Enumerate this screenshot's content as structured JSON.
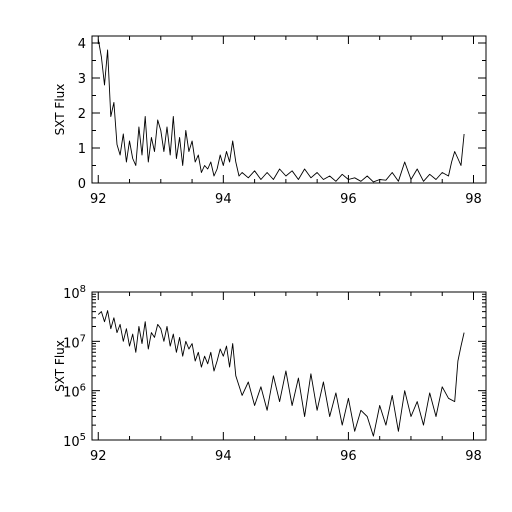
{
  "chart_data": [
    {
      "type": "line",
      "title": "",
      "xlabel": "",
      "ylabel": "SXT Flux",
      "xlim": [
        91.9,
        98.2
      ],
      "ylim": [
        0,
        4.2
      ],
      "yscale": "linear",
      "xticks": [
        92,
        94,
        96,
        98
      ],
      "xtick_labels": [
        "92",
        "94",
        "96",
        "98"
      ],
      "yticks": [
        0,
        1,
        2,
        3,
        4
      ],
      "ytick_labels": [
        "0",
        "1",
        "2",
        "3",
        "4"
      ],
      "grid": false,
      "line_color": "#000000",
      "series": [
        {
          "x": [
            92.0,
            92.05,
            92.1,
            92.15,
            92.2,
            92.25,
            92.3,
            92.35,
            92.4,
            92.45,
            92.5,
            92.55,
            92.6,
            92.65,
            92.7,
            92.75,
            92.8,
            92.85,
            92.9,
            92.95,
            93.0,
            93.05,
            93.1,
            93.15,
            93.2,
            93.25,
            93.3,
            93.35,
            93.4,
            93.45,
            93.5,
            93.55,
            93.6,
            93.65,
            93.7,
            93.75,
            93.8,
            93.85,
            93.9,
            93.95,
            94.0,
            94.05,
            94.1,
            94.15,
            94.2,
            94.25,
            94.3,
            94.4,
            94.5,
            94.6,
            94.7,
            94.8,
            94.9,
            95.0,
            95.1,
            95.2,
            95.3,
            95.4,
            95.5,
            95.6,
            95.7,
            95.8,
            95.9,
            96.0,
            96.1,
            96.2,
            96.3,
            96.4,
            96.5,
            96.6,
            96.7,
            96.8,
            96.9,
            97.0,
            97.1,
            97.2,
            97.3,
            97.4,
            97.5,
            97.6,
            97.65,
            97.7,
            97.75,
            97.8,
            97.85
          ],
          "y": [
            4.1,
            3.6,
            2.8,
            3.8,
            1.9,
            2.3,
            1.1,
            0.8,
            1.4,
            0.6,
            1.2,
            0.7,
            0.5,
            1.6,
            0.8,
            1.9,
            0.6,
            1.3,
            0.9,
            1.8,
            1.5,
            0.9,
            1.6,
            0.8,
            1.9,
            0.7,
            1.3,
            0.5,
            1.5,
            0.9,
            1.2,
            0.6,
            0.8,
            0.3,
            0.5,
            0.4,
            0.6,
            0.2,
            0.4,
            0.8,
            0.5,
            0.9,
            0.6,
            1.2,
            0.6,
            0.2,
            0.3,
            0.15,
            0.35,
            0.1,
            0.3,
            0.1,
            0.4,
            0.2,
            0.35,
            0.1,
            0.4,
            0.15,
            0.3,
            0.1,
            0.2,
            0.05,
            0.25,
            0.1,
            0.15,
            0.05,
            0.2,
            0.03,
            0.1,
            0.08,
            0.3,
            0.05,
            0.6,
            0.1,
            0.4,
            0.05,
            0.25,
            0.1,
            0.3,
            0.2,
            0.6,
            0.9,
            0.7,
            0.5,
            1.4
          ]
        }
      ]
    },
    {
      "type": "line",
      "title": "",
      "xlabel": "",
      "ylabel": "SXT Flux",
      "xlim": [
        91.9,
        98.2
      ],
      "ylim": [
        100000,
        100000000
      ],
      "yscale": "log",
      "xticks": [
        92,
        94,
        96,
        98
      ],
      "xtick_labels": [
        "92",
        "94",
        "96",
        "98"
      ],
      "yticks": [
        100000,
        1000000,
        10000000,
        100000000
      ],
      "ytick_base": "10",
      "ytick_exponents": [
        "5",
        "6",
        "7",
        "8"
      ],
      "grid": false,
      "line_color": "#000000",
      "series": [
        {
          "x": [
            92.0,
            92.05,
            92.1,
            92.15,
            92.2,
            92.25,
            92.3,
            92.35,
            92.4,
            92.45,
            92.5,
            92.55,
            92.6,
            92.65,
            92.7,
            92.75,
            92.8,
            92.85,
            92.9,
            92.95,
            93.0,
            93.05,
            93.1,
            93.15,
            93.2,
            93.25,
            93.3,
            93.35,
            93.4,
            93.45,
            93.5,
            93.55,
            93.6,
            93.65,
            93.7,
            93.75,
            93.8,
            93.85,
            93.9,
            93.95,
            94.0,
            94.05,
            94.1,
            94.15,
            94.2,
            94.3,
            94.4,
            94.5,
            94.6,
            94.7,
            94.8,
            94.9,
            95.0,
            95.1,
            95.2,
            95.3,
            95.4,
            95.5,
            95.6,
            95.7,
            95.8,
            95.9,
            96.0,
            96.1,
            96.2,
            96.3,
            96.4,
            96.5,
            96.6,
            96.7,
            96.8,
            96.9,
            97.0,
            97.1,
            97.2,
            97.3,
            97.4,
            97.5,
            97.6,
            97.7,
            97.75,
            97.8,
            97.85
          ],
          "y": [
            35000000,
            40000000,
            25000000,
            42000000,
            18000000,
            30000000,
            15000000,
            22000000,
            10000000,
            18000000,
            8000000,
            14000000,
            6000000,
            20000000,
            9000000,
            25000000,
            7000000,
            15000000,
            12000000,
            22000000,
            18000000,
            10000000,
            20000000,
            8000000,
            14000000,
            6000000,
            12000000,
            5000000,
            10000000,
            7000000,
            9000000,
            4000000,
            6000000,
            3000000,
            5000000,
            3500000,
            6000000,
            2500000,
            4000000,
            7000000,
            5000000,
            8000000,
            3000000,
            9000000,
            2000000,
            800000,
            1500000,
            500000,
            1200000,
            400000,
            2000000,
            600000,
            2500000,
            500000,
            1800000,
            300000,
            2200000,
            400000,
            1500000,
            300000,
            900000,
            200000,
            700000,
            150000,
            400000,
            300000,
            120000,
            500000,
            200000,
            800000,
            150000,
            1000000,
            300000,
            600000,
            200000,
            900000,
            300000,
            1200000,
            700000,
            600000,
            4000000,
            8000000,
            15000000
          ]
        }
      ]
    }
  ]
}
